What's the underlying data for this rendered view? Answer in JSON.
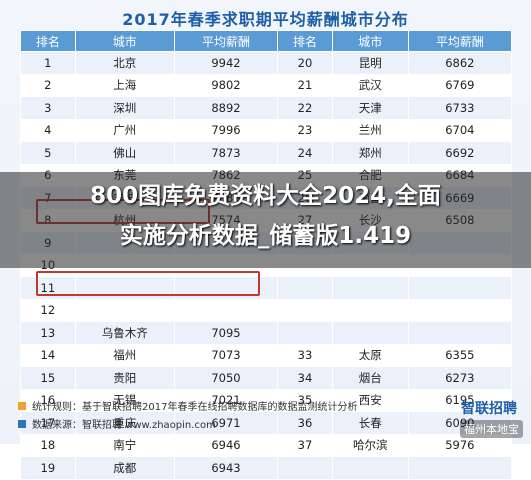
{
  "title": "2017年春季求职期平均薪酬城市分布",
  "headers": [
    "排名",
    "城市",
    "平均薪酬",
    "排名",
    "城市",
    "平均薪酬"
  ],
  "rows": [
    [
      "1",
      "北京",
      "9942",
      "20",
      "昆明",
      "6862"
    ],
    [
      "2",
      "上海",
      "9802",
      "21",
      "武汉",
      "6769"
    ],
    [
      "3",
      "深圳",
      "8892",
      "22",
      "天津",
      "6733"
    ],
    [
      "4",
      "广州",
      "7996",
      "23",
      "兰州",
      "6704"
    ],
    [
      "5",
      "佛山",
      "7873",
      "24",
      "郑州",
      "6692"
    ],
    [
      "6",
      "东莞",
      "7862",
      "25",
      "合肥",
      "6684"
    ],
    [
      "7",
      "宁波",
      "7680",
      "26",
      "南昌",
      "6669"
    ],
    [
      "8",
      "杭州",
      "7574",
      "27",
      "长沙",
      "6508"
    ],
    [
      "9",
      "",
      "",
      "",
      "",
      ""
    ],
    [
      "10",
      "",
      "",
      "",
      "",
      ""
    ],
    [
      "11",
      "",
      "",
      "",
      "",
      ""
    ],
    [
      "12",
      "",
      "",
      "",
      "",
      ""
    ],
    [
      "13",
      "乌鲁木齐",
      "7095",
      "",
      "",
      ""
    ],
    [
      "14",
      "福州",
      "7073",
      "33",
      "太原",
      "6355"
    ],
    [
      "15",
      "贵阳",
      "7050",
      "34",
      "烟台",
      "6273"
    ],
    [
      "16",
      "无锡",
      "7021",
      "35",
      "西安",
      "6195"
    ],
    [
      "17",
      "重庆",
      "6971",
      "36",
      "长春",
      "6090"
    ],
    [
      "18",
      "南宁",
      "6946",
      "37",
      "哈尔滨",
      "5976"
    ],
    [
      "19",
      "成都",
      "6943",
      "",
      "",
      ""
    ]
  ],
  "overlay_text_line1": "800图库免费资料大全2024,全面",
  "overlay_text_line2": "实施分析数据_储蓄版1.419",
  "footer": {
    "rule": "统计规则：基于智联招聘2017年春季在线招聘数据库的数据监测统计分析",
    "source": "数据来源：智联招聘 www.zhaopin.com"
  },
  "logo": "智联招聘",
  "watermark": "福州本地宝"
}
